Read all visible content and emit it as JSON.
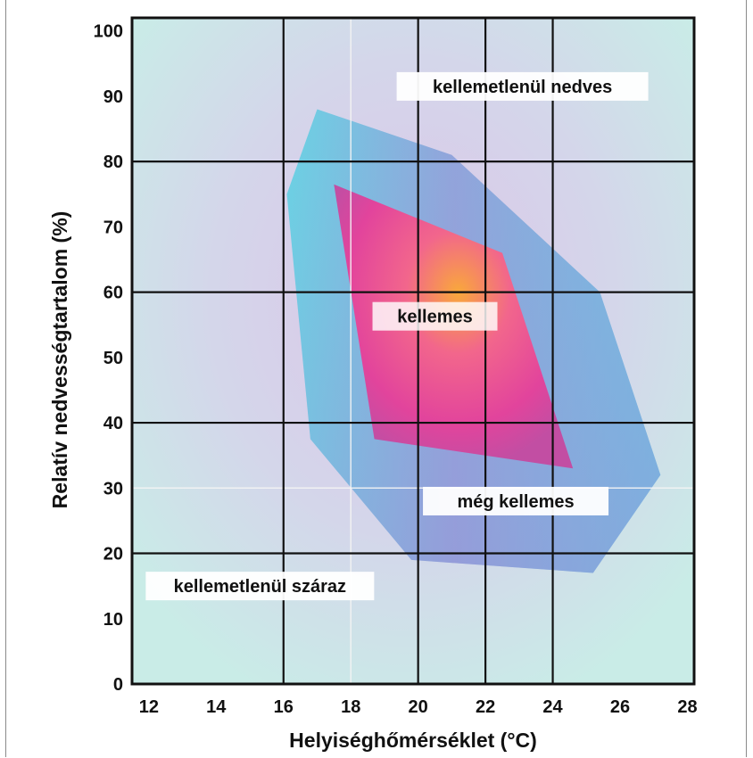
{
  "chart_data": {
    "type": "area",
    "xlabel": "Helyiséghőmérséklet (°C)",
    "ylabel": "Relatív nedvességtartalom  (%)",
    "xlim": [
      11.5,
      28.2
    ],
    "ylim": [
      0,
      102
    ],
    "x_ticks": [
      "12",
      "14",
      "16",
      "18",
      "20",
      "22",
      "24",
      "26",
      "28"
    ],
    "y_ticks": [
      "0",
      "10",
      "20",
      "30",
      "40",
      "50",
      "60",
      "70",
      "80",
      "90",
      "100"
    ],
    "major_x_grid": [
      16,
      20,
      22,
      24
    ],
    "minor_x_grid": [
      18
    ],
    "major_y_grid": [
      20,
      40,
      60,
      80
    ],
    "minor_y_grid": [
      30
    ],
    "grid": true,
    "series": [
      {
        "name": "még kellemes",
        "color": "#5fd2e6",
        "points": [
          [
            17,
            88
          ],
          [
            21,
            81
          ],
          [
            25.4,
            60
          ],
          [
            27.2,
            32
          ],
          [
            25.2,
            17
          ],
          [
            19.8,
            19
          ],
          [
            16.8,
            37.5
          ],
          [
            16.1,
            75
          ]
        ]
      },
      {
        "name": "kellemes",
        "color": "#e8449a",
        "points": [
          [
            17.5,
            76.5
          ],
          [
            22.5,
            66
          ],
          [
            24.6,
            33
          ],
          [
            18.7,
            37.5
          ]
        ]
      }
    ],
    "annotations": [
      {
        "text": "kellemetlenül nedves",
        "x": 23.1,
        "y": 91.5
      },
      {
        "text": "kellemes",
        "x": 20.5,
        "y": 56.3
      },
      {
        "text": "még kellemes",
        "x": 22.9,
        "y": 28
      },
      {
        "text": "kellemetlenül száraz",
        "x": 15.3,
        "y": 15
      }
    ],
    "colors": {
      "background_center": "#d8c4e6",
      "background_edge": "#cfe9e8",
      "outer_zone": "#5fd2e6",
      "inner_zone": "#e8449a",
      "inner_center": "#f6a63a",
      "grid": "#111111"
    }
  }
}
